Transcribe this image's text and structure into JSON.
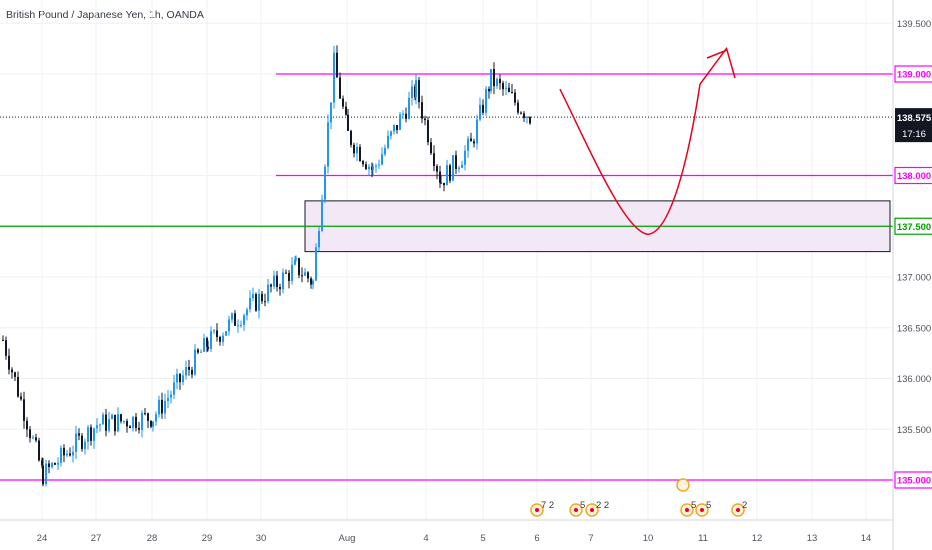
{
  "header": {
    "title": "British Pound / Japanese Yen, 1h, OANDA"
  },
  "colors": {
    "background": "#ffffff",
    "grid": "#eef0f3",
    "up_candle": "#2196f3",
    "down_candle": "#131722",
    "horizontal_magenta": "#ff00ff",
    "horizontal_green": "#00a000",
    "current_price_line": "#131722",
    "drawing_red": "#e8001c",
    "zone_fill": "#f3e8f6",
    "zone_border": "#131722",
    "axis_text": "#50535e"
  },
  "price_axis": {
    "ticks": [
      "139.500",
      "139.000",
      "138.000",
      "137.500",
      "137.000",
      "136.500",
      "136.000",
      "135.500",
      "135.000"
    ],
    "current_price": "138.575",
    "countdown": "17:16",
    "highlighted_levels": [
      {
        "label": "139.000",
        "color": "#ff00ff"
      },
      {
        "label": "138.000",
        "color": "#ff00ff"
      },
      {
        "label": "137.500",
        "color": "#00a000"
      },
      {
        "label": "135.000",
        "color": "#ff00ff"
      }
    ]
  },
  "time_axis": {
    "labels": [
      "24",
      "27",
      "28",
      "29",
      "30",
      "Aug",
      "4",
      "5",
      "6",
      "7",
      "10",
      "11",
      "12",
      "13",
      "14"
    ]
  },
  "events": [
    {
      "count": "7 2"
    },
    {
      "count": "5"
    },
    {
      "count": "2 2"
    },
    {
      "count": "5"
    },
    {
      "count": "5"
    },
    {
      "count": "2"
    }
  ],
  "chart_data": {
    "type": "candlestick",
    "symbol": "British Pound / Japanese Yen",
    "interval": "1h",
    "source": "OANDA",
    "ylim": [
      134.6,
      139.75
    ],
    "current_price": 138.575,
    "horizontal_levels": [
      139.0,
      138.0,
      137.5,
      135.0
    ],
    "zone": {
      "from_label": "30",
      "price_top": 137.75,
      "price_bottom": 137.25
    },
    "close_path": [
      {
        "date": "23",
        "close": 136.38
      },
      {
        "date": "24",
        "close": 135.05
      },
      {
        "date": "27",
        "close": 135.55
      },
      {
        "date": "28",
        "close": 135.62
      },
      {
        "date": "29",
        "close": 136.35
      },
      {
        "date": "30",
        "close": 137.1
      },
      {
        "date": "30",
        "close": 136.95
      },
      {
        "date": "31",
        "close": 139.1
      },
      {
        "date": "Aug",
        "close": 138.4
      },
      {
        "date": "3",
        "close": 138.05
      },
      {
        "date": "4",
        "close": 138.85
      },
      {
        "date": "4",
        "close": 137.95
      },
      {
        "date": "5",
        "close": 138.3
      },
      {
        "date": "5",
        "close": 138.95
      },
      {
        "date": "6",
        "close": 138.575
      }
    ],
    "projection_path": [
      {
        "date": "6",
        "price": 138.85
      },
      {
        "date": "10",
        "price": 137.42
      },
      {
        "date": "11",
        "price": 138.9
      },
      {
        "date": "12",
        "price": 139.2
      }
    ]
  }
}
